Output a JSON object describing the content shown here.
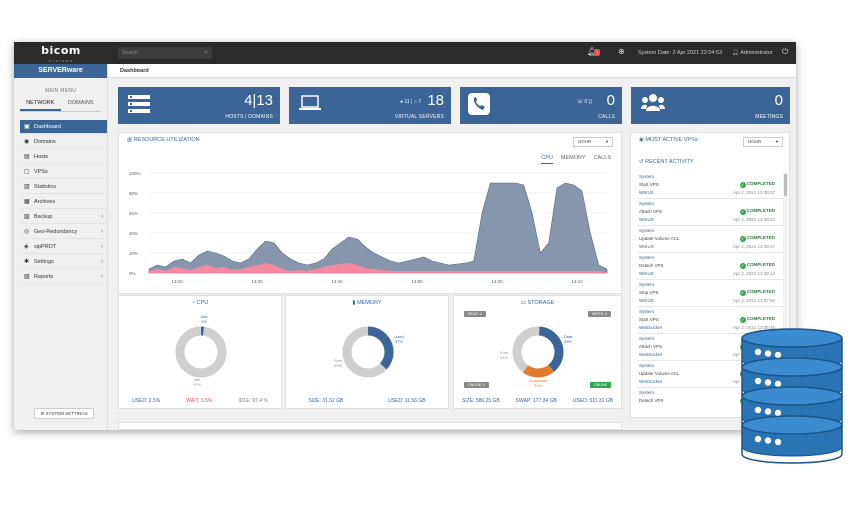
{
  "topbar": {
    "logo": "bicom",
    "logo_sub": "SYSTEMS",
    "search_placeholder": "Search",
    "notification_count": "1",
    "system_date": "System Date: 2 Apr 2021 22:04:53",
    "user": "Administrator"
  },
  "sidebar": {
    "brand": "SERVERware",
    "main_menu": "MAIN MENU",
    "tabs": [
      "NETWORK",
      "DOMAINS"
    ],
    "items": [
      {
        "label": "Dashboard",
        "icon": "dashboard-icon",
        "glyph": "▣",
        "active": true,
        "sub": false
      },
      {
        "label": "Domains",
        "icon": "globe-icon",
        "glyph": "◉",
        "active": false,
        "sub": false
      },
      {
        "label": "Hosts",
        "icon": "server-icon",
        "glyph": "▤",
        "active": false,
        "sub": false
      },
      {
        "label": "VPSs",
        "icon": "vps-icon",
        "glyph": "▢",
        "active": false,
        "sub": false
      },
      {
        "label": "Statistics",
        "icon": "statistics-icon",
        "glyph": "▥",
        "active": false,
        "sub": false
      },
      {
        "label": "Archives",
        "icon": "archive-icon",
        "glyph": "▦",
        "active": false,
        "sub": false
      },
      {
        "label": "Backup",
        "icon": "backup-icon",
        "glyph": "▧",
        "active": false,
        "sub": true
      },
      {
        "label": "Geo-Redundancy",
        "icon": "geo-icon",
        "glyph": "◎",
        "active": false,
        "sub": true
      },
      {
        "label": "sipPROT",
        "icon": "shield-icon",
        "glyph": "◈",
        "active": false,
        "sub": true
      },
      {
        "label": "Settings",
        "icon": "gear-icon",
        "glyph": "✱",
        "active": false,
        "sub": true
      },
      {
        "label": "Reports",
        "icon": "report-icon",
        "glyph": "▨",
        "active": false,
        "sub": true
      }
    ],
    "system_settings": "SYSTEM SETTINGS"
  },
  "header": {
    "title": "Dashboard"
  },
  "cards": {
    "hosts": {
      "value": "4|13",
      "label": "HOSTS | DOMAINS"
    },
    "virtual_servers": {
      "value": "18",
      "label": "VIRTUAL SERVERS",
      "running": "11",
      "stopped": "7"
    },
    "calls": {
      "value": "0",
      "label": "CALLS",
      "extra": "0"
    },
    "meetings": {
      "value": "0",
      "label": "MEETINGS"
    }
  },
  "resource": {
    "title": "RESOURCE UTILIZATION",
    "hour": "HOUR",
    "tabs": [
      "CPU",
      "MEMORY",
      "CALLS"
    ],
    "active_tab": "CPU"
  },
  "chart_data": {
    "type": "area",
    "title": "",
    "xlabel": "",
    "ylabel": "",
    "y_ticks": [
      "100%",
      "80%",
      "60%",
      "40%",
      "20%",
      "0%"
    ],
    "ylim": [
      0,
      100
    ],
    "x_ticks": [
      "13:20",
      "13:30",
      "13:40",
      "13:50",
      "14:00",
      "14:10"
    ],
    "series": [
      {
        "values": [
          4,
          8,
          6,
          12,
          14,
          10,
          18,
          22,
          20,
          17,
          12,
          10,
          14,
          24,
          32,
          30,
          20,
          14,
          10,
          8,
          10,
          14,
          24,
          30,
          36,
          34,
          26,
          20,
          16,
          12,
          10,
          12,
          14,
          16,
          12,
          10,
          8,
          9,
          10,
          12,
          60,
          90,
          90,
          90,
          90,
          88,
          60,
          20,
          30,
          85,
          90,
          88,
          82,
          40,
          8,
          4
        ]
      },
      {
        "values": [
          2,
          4,
          2,
          6,
          5,
          3,
          6,
          8,
          5,
          6,
          3,
          4,
          6,
          8,
          10,
          8,
          4,
          2,
          3,
          2,
          4,
          6,
          8,
          9,
          10,
          8,
          5,
          4,
          3,
          2,
          2,
          2,
          2,
          2,
          2,
          2,
          2,
          2,
          2,
          2,
          2,
          2,
          2,
          2,
          2,
          2,
          2,
          2,
          2,
          2,
          2,
          2,
          2,
          2,
          2,
          1
        ]
      }
    ]
  },
  "cpu": {
    "title": "CPU",
    "used": "USED: 2.5%",
    "wait": "WAIT: 0.5%",
    "idle": "IDLE: 97.4 %",
    "use_label": "Use",
    "use_pct": 2,
    "idle_label": "Idle",
    "idle_pct": 97
  },
  "memory": {
    "title": "MEMORY",
    "size": "SIZE: 31.52 GB",
    "used": "USED: 11.56 GB",
    "used_label": "Used",
    "used_pct": 37,
    "free_label": "Free",
    "free_pct": 63
  },
  "storage": {
    "title": "STORAGE",
    "read": "READ: 0",
    "write": "WRITE: 0",
    "online": "ONLINE: 0",
    "online2": "ONLINE",
    "size": "SIZE: 586.25 GB",
    "swap": "SWAP: 177.34 GB",
    "used": "USED: 511.31 GB",
    "data_label": "Data",
    "data_pct": 39,
    "free_label": "Free",
    "free_pct": 41,
    "snap_label": "Snapshots",
    "snap_pct": 21
  },
  "most_active": {
    "title": "MOST ACTIVE VPSs:",
    "hour": "HOUR"
  },
  "recent": {
    "title": "RECENT ACTIVITY",
    "items": [
      {
        "who": "System",
        "action": "Start VPS",
        "target": "WIKUS",
        "status": "COMPLETED",
        "time": "Apr 2, 2021 13:39:27"
      },
      {
        "who": "System",
        "action": "Attach VPS",
        "target": "WIKUS",
        "status": "COMPLETED",
        "time": "Apr 2, 2021 13:39:20"
      },
      {
        "who": "System",
        "action": "Update Volume ACL",
        "target": "WIKUS",
        "status": "COMPLETED",
        "time": "Apr 2, 2021 13:39:17"
      },
      {
        "who": "System",
        "action": "Detach VPS",
        "target": "WIKUS",
        "status": "COMPLETED",
        "time": "Apr 2, 2021 13:38:14"
      },
      {
        "who": "System",
        "action": "Stop VPS",
        "target": "WIKUS",
        "status": "COMPLETED",
        "time": "Apr 2, 2021 13:37:56"
      },
      {
        "who": "System",
        "action": "Start VPS",
        "target": "WebSocket",
        "status": "COMPLETED",
        "time": "Apr 2, 2021 13:36:46"
      },
      {
        "who": "System",
        "action": "Attach VPS",
        "target": "WebSocket",
        "status": "COMPLETED",
        "time": "Apr 2, 2021 13:36:38"
      },
      {
        "who": "System",
        "action": "Update Volume ACL",
        "target": "WebSocket",
        "status": "COMPLETED",
        "time": "Apr 2, 2021 13:36:35"
      },
      {
        "who": "System",
        "action": "Detach VPS",
        "target": "",
        "status": "COMPLETED",
        "time": ""
      }
    ]
  },
  "colors": {
    "brand": "#3a6596",
    "area": "#8596ad",
    "area_line": "#4f6787",
    "pink": "#f48a9f",
    "donut_grey": "#cfcfcf",
    "orange": "#e07a2c",
    "green": "#2fa84f",
    "db_blue": "#2a74b3"
  }
}
